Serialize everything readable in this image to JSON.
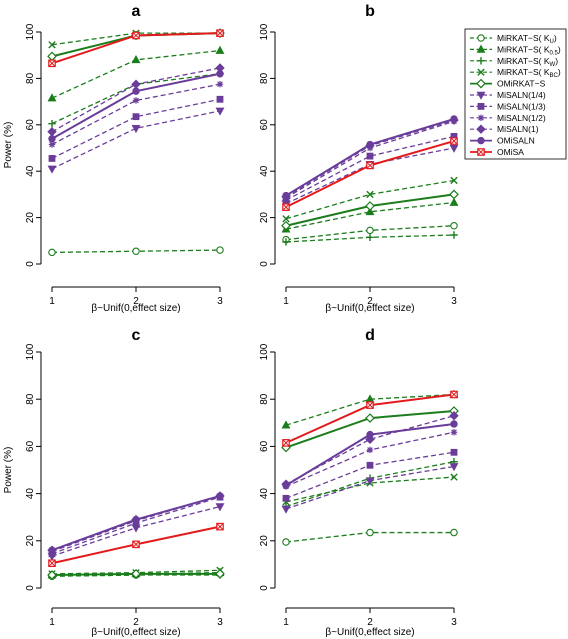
{
  "figure": {
    "xlabel": "β~Unif(0,effect size)",
    "ylabel": "Power (%)"
  },
  "legend": {
    "entries": [
      {
        "label": "MiRKAT−S( K",
        "sub": "U",
        "tail": ")",
        "color": "#1b7d1b",
        "dash": true,
        "marker": "circle-open"
      },
      {
        "label": "MiRKAT−S( K",
        "sub": "0.5",
        "tail": ")",
        "color": "#1b7d1b",
        "dash": true,
        "marker": "triangle"
      },
      {
        "label": "MiRKAT−S( K",
        "sub": "W",
        "tail": ")",
        "color": "#1b7d1b",
        "dash": true,
        "marker": "plus"
      },
      {
        "label": "MiRKAT−S( K",
        "sub": "BC",
        "tail": ")",
        "color": "#1b7d1b",
        "dash": true,
        "marker": "cross"
      },
      {
        "label": "OMiRKAT−S",
        "sub": "",
        "tail": "",
        "color": "#1b7d1b",
        "dash": false,
        "marker": "diamond-open"
      },
      {
        "label": "MiSALN(1/4)",
        "sub": "",
        "tail": "",
        "color": "#6a3d9a",
        "dash": true,
        "marker": "triangle-down"
      },
      {
        "label": "MiSALN(1/3)",
        "sub": "",
        "tail": "",
        "color": "#6a3d9a",
        "dash": true,
        "marker": "square"
      },
      {
        "label": "MiSALN(1/2)",
        "sub": "",
        "tail": "",
        "color": "#6a3d9a",
        "dash": true,
        "marker": "star"
      },
      {
        "label": "MiSALN(1)",
        "sub": "",
        "tail": "",
        "color": "#6a3d9a",
        "dash": true,
        "marker": "diamond"
      },
      {
        "label": "OMiSALN",
        "sub": "",
        "tail": "",
        "color": "#6a3d9a",
        "dash": false,
        "marker": "circle"
      },
      {
        "label": "OMiSA",
        "sub": "",
        "tail": "",
        "color": "#e31a1c",
        "dash": false,
        "marker": "square-x"
      }
    ]
  },
  "chart_data": [
    {
      "panel": "a",
      "type": "line",
      "x": [
        1,
        2,
        3
      ],
      "xlabel": "β~Unif(0,effect size)",
      "ylabel": "Power (%)",
      "ylim": [
        0,
        100
      ],
      "yticks": [
        0,
        20,
        40,
        60,
        80,
        100
      ],
      "series": [
        {
          "name": "MiRKAT−S(KU)",
          "values": [
            5,
            5.5,
            6
          ]
        },
        {
          "name": "MiRKAT−S(K0.5)",
          "values": [
            71.5,
            88,
            92
          ]
        },
        {
          "name": "MiRKAT−S(KW)",
          "values": [
            60.5,
            77.5,
            82
          ]
        },
        {
          "name": "MiRKAT−S(KBC)",
          "values": [
            94.5,
            99.5,
            99.5
          ]
        },
        {
          "name": "OMiRKAT−S",
          "values": [
            89.5,
            98.5,
            99.5
          ]
        },
        {
          "name": "MiSALN(1/4)",
          "values": [
            41,
            58.5,
            66
          ]
        },
        {
          "name": "MiSALN(1/3)",
          "values": [
            45.5,
            63.5,
            71
          ]
        },
        {
          "name": "MiSALN(1/2)",
          "values": [
            51.5,
            70.5,
            77.5
          ]
        },
        {
          "name": "MiSALN(1)",
          "values": [
            57,
            77.5,
            84.5
          ]
        },
        {
          "name": "OMiSALN",
          "values": [
            54,
            74.5,
            82
          ]
        },
        {
          "name": "OMiSA",
          "values": [
            86.5,
            98.5,
            99.5
          ]
        }
      ]
    },
    {
      "panel": "b",
      "type": "line",
      "x": [
        1,
        2,
        3
      ],
      "xlabel": "β~Unif(0,effect size)",
      "ylabel": "Power (%)",
      "ylim": [
        0,
        100
      ],
      "yticks": [
        0,
        20,
        40,
        60,
        80,
        100
      ],
      "series": [
        {
          "name": "MiRKAT−S(KU)",
          "values": [
            10.5,
            14.5,
            16.5
          ]
        },
        {
          "name": "MiRKAT−S(K0.5)",
          "values": [
            15,
            22.5,
            26.5
          ]
        },
        {
          "name": "MiRKAT−S(KW)",
          "values": [
            9.5,
            11.5,
            12.5
          ]
        },
        {
          "name": "MiRKAT−S(KBC)",
          "values": [
            19.5,
            30,
            36
          ]
        },
        {
          "name": "OMiRKAT−S",
          "values": [
            16.5,
            25,
            30
          ]
        },
        {
          "name": "MiSALN(1/4)",
          "values": [
            26,
            43,
            50
          ]
        },
        {
          "name": "MiSALN(1/3)",
          "values": [
            27.5,
            46.5,
            55
          ]
        },
        {
          "name": "MiSALN(1/2)",
          "values": [
            28.5,
            50,
            61.5
          ]
        },
        {
          "name": "MiSALN(1)",
          "values": [
            29,
            51,
            62
          ]
        },
        {
          "name": "OMiSALN",
          "values": [
            29.5,
            51.5,
            62.5
          ]
        },
        {
          "name": "OMiSA",
          "values": [
            24.5,
            42.5,
            53
          ]
        }
      ]
    },
    {
      "panel": "c",
      "type": "line",
      "x": [
        1,
        2,
        3
      ],
      "xlabel": "β~Unif(0,effect size)",
      "ylabel": "Power (%)",
      "ylim": [
        0,
        100
      ],
      "yticks": [
        0,
        20,
        40,
        60,
        80,
        100
      ],
      "series": [
        {
          "name": "MiRKAT−S(KU)",
          "values": [
            5,
            5.5,
            6
          ]
        },
        {
          "name": "MiRKAT−S(K0.5)",
          "values": [
            5.5,
            6,
            6.5
          ]
        },
        {
          "name": "MiRKAT−S(KW)",
          "values": [
            5,
            5.5,
            5.5
          ]
        },
        {
          "name": "MiRKAT−S(KBC)",
          "values": [
            6,
            6.5,
            7.5
          ]
        },
        {
          "name": "OMiRKAT−S",
          "values": [
            5.5,
            6,
            6
          ]
        },
        {
          "name": "MiSALN(1/4)",
          "values": [
            13.5,
            25.5,
            34.5
          ]
        },
        {
          "name": "MiSALN(1/3)",
          "values": [
            14.5,
            27.5,
            38.5
          ]
        },
        {
          "name": "MiSALN(1/2)",
          "values": [
            15.5,
            28.5,
            39
          ]
        },
        {
          "name": "MiSALN(1)",
          "values": [
            16,
            29,
            39
          ]
        },
        {
          "name": "OMiSALN",
          "values": [
            16,
            29,
            39
          ]
        },
        {
          "name": "OMiSA",
          "values": [
            10.5,
            18.5,
            26
          ]
        }
      ]
    },
    {
      "panel": "d",
      "type": "line",
      "x": [
        1,
        2,
        3
      ],
      "xlabel": "β~Unif(0,effect size)",
      "ylabel": "Power (%)",
      "ylim": [
        0,
        100
      ],
      "yticks": [
        0,
        20,
        40,
        60,
        80,
        100
      ],
      "series": [
        {
          "name": "MiRKAT−S(KU)",
          "values": [
            19.5,
            23.5,
            23.5
          ]
        },
        {
          "name": "MiRKAT−S(K0.5)",
          "values": [
            69,
            80,
            82
          ]
        },
        {
          "name": "MiRKAT−S(KW)",
          "values": [
            34.5,
            46.5,
            53.5
          ]
        },
        {
          "name": "MiRKAT−S(KBC)",
          "values": [
            36.5,
            44.5,
            47
          ]
        },
        {
          "name": "OMiRKAT−S",
          "values": [
            59.5,
            72,
            75
          ]
        },
        {
          "name": "MiSALN(1/4)",
          "values": [
            33.5,
            45.5,
            51.5
          ]
        },
        {
          "name": "MiSALN(1/3)",
          "values": [
            38,
            52,
            57.5
          ]
        },
        {
          "name": "MiSALN(1/2)",
          "values": [
            43,
            58.5,
            66
          ]
        },
        {
          "name": "MiSALN(1)",
          "values": [
            44,
            63,
            73
          ]
        },
        {
          "name": "OMiSALN",
          "values": [
            43.5,
            65,
            69.5
          ]
        },
        {
          "name": "OMiSA",
          "values": [
            61.5,
            77.5,
            82
          ]
        }
      ]
    }
  ]
}
